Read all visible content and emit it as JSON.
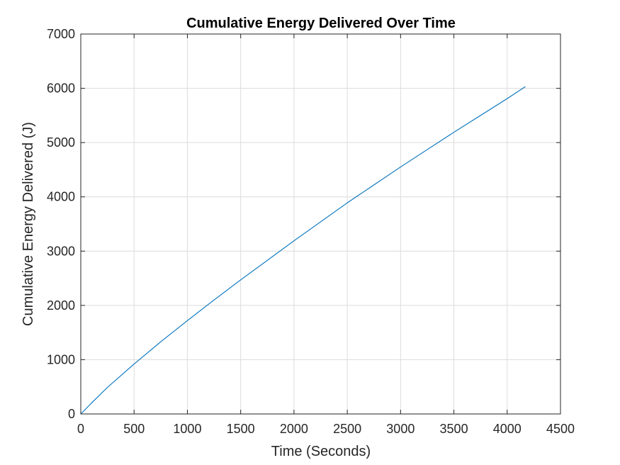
{
  "chart_data": {
    "type": "line",
    "title": "Cumulative Energy Delivered Over Time",
    "xlabel": "Time (Seconds)",
    "ylabel": "Cumulative Energy Delivered (J)",
    "xlim": [
      0,
      4500
    ],
    "ylim": [
      0,
      7000
    ],
    "xticks": [
      0,
      500,
      1000,
      1500,
      2000,
      2500,
      3000,
      3500,
      4000,
      4500
    ],
    "yticks": [
      0,
      1000,
      2000,
      3000,
      4000,
      5000,
      6000,
      7000
    ],
    "xtick_labels": [
      "0",
      "500",
      "1000",
      "1500",
      "2000",
      "2500",
      "3000",
      "3500",
      "4000",
      "4500"
    ],
    "ytick_labels": [
      "0",
      "1000",
      "2000",
      "3000",
      "4000",
      "5000",
      "6000",
      "7000"
    ],
    "grid": true,
    "series": [
      {
        "color": "#0072BD",
        "x": [
          0,
          100,
          250,
          500,
          750,
          1000,
          1250,
          1500,
          1750,
          2000,
          2250,
          2500,
          2750,
          3000,
          3250,
          3500,
          3750,
          4000,
          4170
        ],
        "y": [
          0,
          200,
          490,
          920,
          1330,
          1720,
          2100,
          2470,
          2830,
          3190,
          3540,
          3890,
          4220,
          4550,
          4870,
          5190,
          5500,
          5810,
          6030
        ]
      }
    ]
  }
}
